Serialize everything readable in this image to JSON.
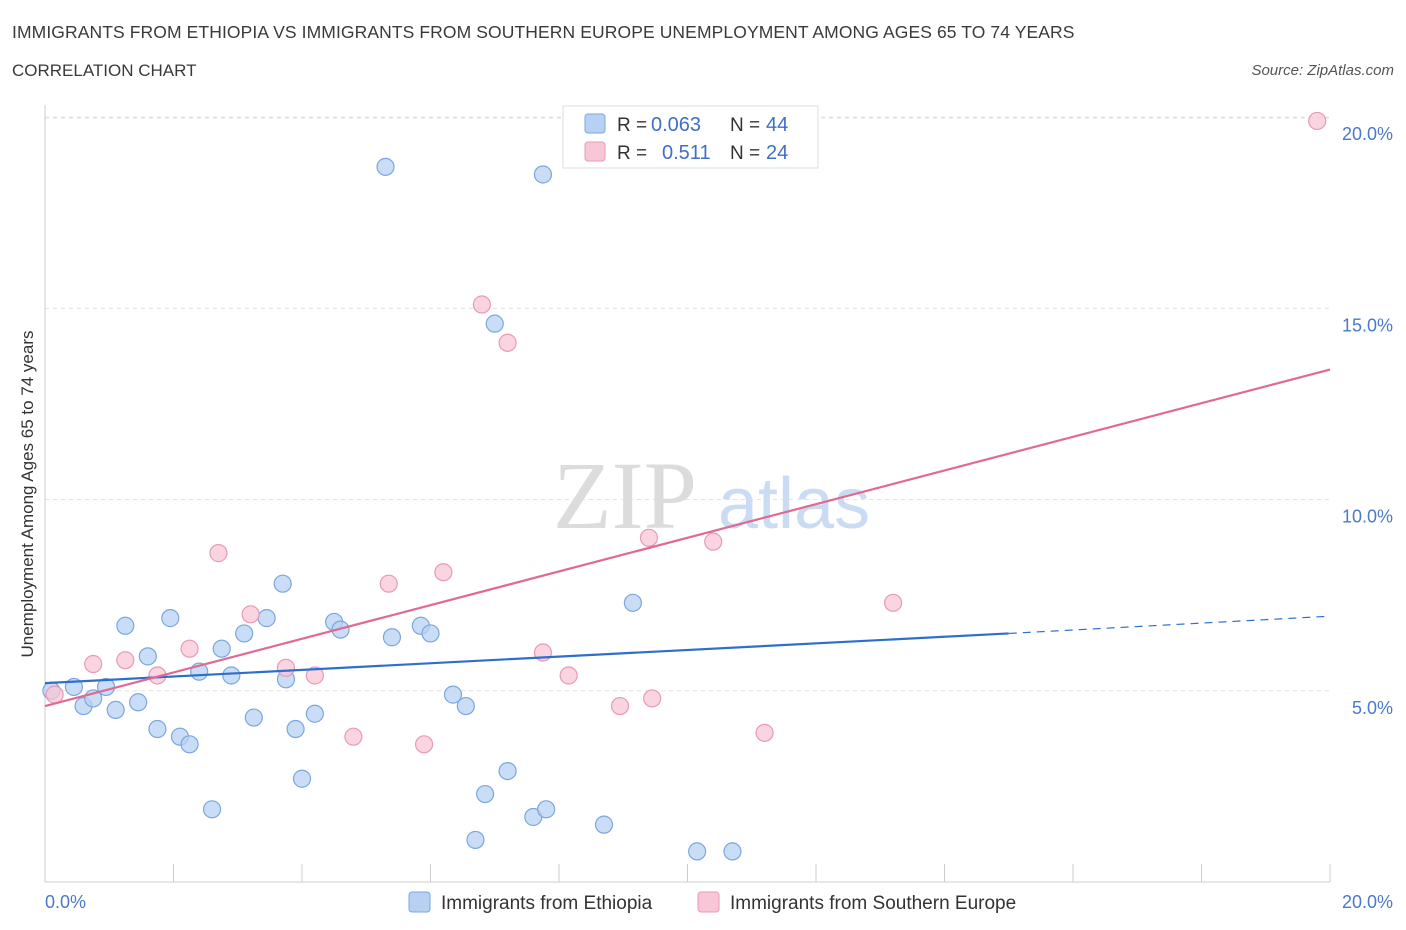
{
  "header": {
    "title": "IMMIGRANTS FROM ETHIOPIA VS IMMIGRANTS FROM SOUTHERN EUROPE UNEMPLOYMENT AMONG AGES 65 TO 74 YEARS",
    "subtitle": "CORRELATION CHART",
    "source": "Source: ZipAtlas.com"
  },
  "watermark": {
    "zip": "ZIP",
    "atlas": "atlas"
  },
  "stats_legend": {
    "r_label": "R =",
    "n_label": "N =",
    "rows": [
      {
        "series": "Immigrants from Ethiopia",
        "r": "0.063",
        "n": "44",
        "color": "#b8d1f3"
      },
      {
        "series": "Immigrants from Southern Europe",
        "r": "0.511",
        "n": "24",
        "color": "#f8c6d6"
      }
    ]
  },
  "chart_data": {
    "type": "scatter",
    "title": "IMMIGRANTS FROM ETHIOPIA VS IMMIGRANTS FROM SOUTHERN EUROPE UNEMPLOYMENT AMONG AGES 65 TO 74 YEARS",
    "subtitle": "CORRELATION CHART",
    "xlabel": "",
    "ylabel": "Unemployment Among Ages 65 to 74 years",
    "xlim": [
      0,
      20
    ],
    "ylim": [
      0,
      20.5
    ],
    "x_tick_labels": [
      "0.0%",
      "20.0%"
    ],
    "y_ticks": [
      {
        "value": 5,
        "label": "5.0%"
      },
      {
        "value": 10,
        "label": "10.0%"
      },
      {
        "value": 15,
        "label": "15.0%"
      },
      {
        "value": 20,
        "label": "20.0%"
      }
    ],
    "grid": true,
    "legend_position": "bottom",
    "series": [
      {
        "name": "Immigrants from Ethiopia",
        "color": "#7aa7e0",
        "fill": "#b8d1f3",
        "trend_color": "#2f6fcc",
        "trend": {
          "x0": 0,
          "y0": 5.2,
          "x1": 15,
          "y1": 6.5,
          "x_dash_end": 20,
          "y_dash_end": 6.95
        },
        "points": [
          [
            0.1,
            5.0
          ],
          [
            0.45,
            5.1
          ],
          [
            0.6,
            4.6
          ],
          [
            0.75,
            4.8
          ],
          [
            0.95,
            5.1
          ],
          [
            1.1,
            4.5
          ],
          [
            1.25,
            6.7
          ],
          [
            1.45,
            4.7
          ],
          [
            1.6,
            5.9
          ],
          [
            1.75,
            4.0
          ],
          [
            1.95,
            6.9
          ],
          [
            2.1,
            3.8
          ],
          [
            2.25,
            3.6
          ],
          [
            2.4,
            5.5
          ],
          [
            2.6,
            1.9
          ],
          [
            2.75,
            6.1
          ],
          [
            2.9,
            5.4
          ],
          [
            3.1,
            6.5
          ],
          [
            3.25,
            4.3
          ],
          [
            3.45,
            6.9
          ],
          [
            3.7,
            7.8
          ],
          [
            3.75,
            5.3
          ],
          [
            3.9,
            4.0
          ],
          [
            4.0,
            2.7
          ],
          [
            4.2,
            4.4
          ],
          [
            4.5,
            6.8
          ],
          [
            4.6,
            6.6
          ],
          [
            5.3,
            18.7
          ],
          [
            5.4,
            6.4
          ],
          [
            5.85,
            6.7
          ],
          [
            6.0,
            6.5
          ],
          [
            6.35,
            4.9
          ],
          [
            6.55,
            4.6
          ],
          [
            6.7,
            1.1
          ],
          [
            6.85,
            2.3
          ],
          [
            7.0,
            14.6
          ],
          [
            7.2,
            2.9
          ],
          [
            7.6,
            1.7
          ],
          [
            7.75,
            18.5
          ],
          [
            7.8,
            1.9
          ],
          [
            8.7,
            1.5
          ],
          [
            9.15,
            7.3
          ],
          [
            10.15,
            0.8
          ],
          [
            10.7,
            0.8
          ]
        ]
      },
      {
        "name": "Immigrants from Southern Europe",
        "color": "#e89ab4",
        "fill": "#f8c6d6",
        "trend_color": "#e06a93",
        "trend": {
          "x0": 0,
          "y0": 4.6,
          "x1": 20,
          "y1": 13.4
        },
        "points": [
          [
            0.15,
            4.9
          ],
          [
            0.75,
            5.7
          ],
          [
            1.25,
            5.8
          ],
          [
            1.75,
            5.4
          ],
          [
            2.25,
            6.1
          ],
          [
            2.7,
            8.6
          ],
          [
            3.2,
            7.0
          ],
          [
            3.75,
            5.6
          ],
          [
            4.2,
            5.4
          ],
          [
            4.8,
            3.8
          ],
          [
            5.35,
            7.8
          ],
          [
            5.9,
            3.6
          ],
          [
            6.2,
            8.1
          ],
          [
            6.8,
            15.1
          ],
          [
            7.2,
            14.1
          ],
          [
            7.75,
            6.0
          ],
          [
            8.15,
            5.4
          ],
          [
            8.95,
            4.6
          ],
          [
            9.4,
            9.0
          ],
          [
            9.45,
            4.8
          ],
          [
            10.4,
            8.9
          ],
          [
            11.2,
            3.9
          ],
          [
            13.2,
            7.3
          ],
          [
            19.8,
            19.9
          ]
        ]
      }
    ]
  }
}
